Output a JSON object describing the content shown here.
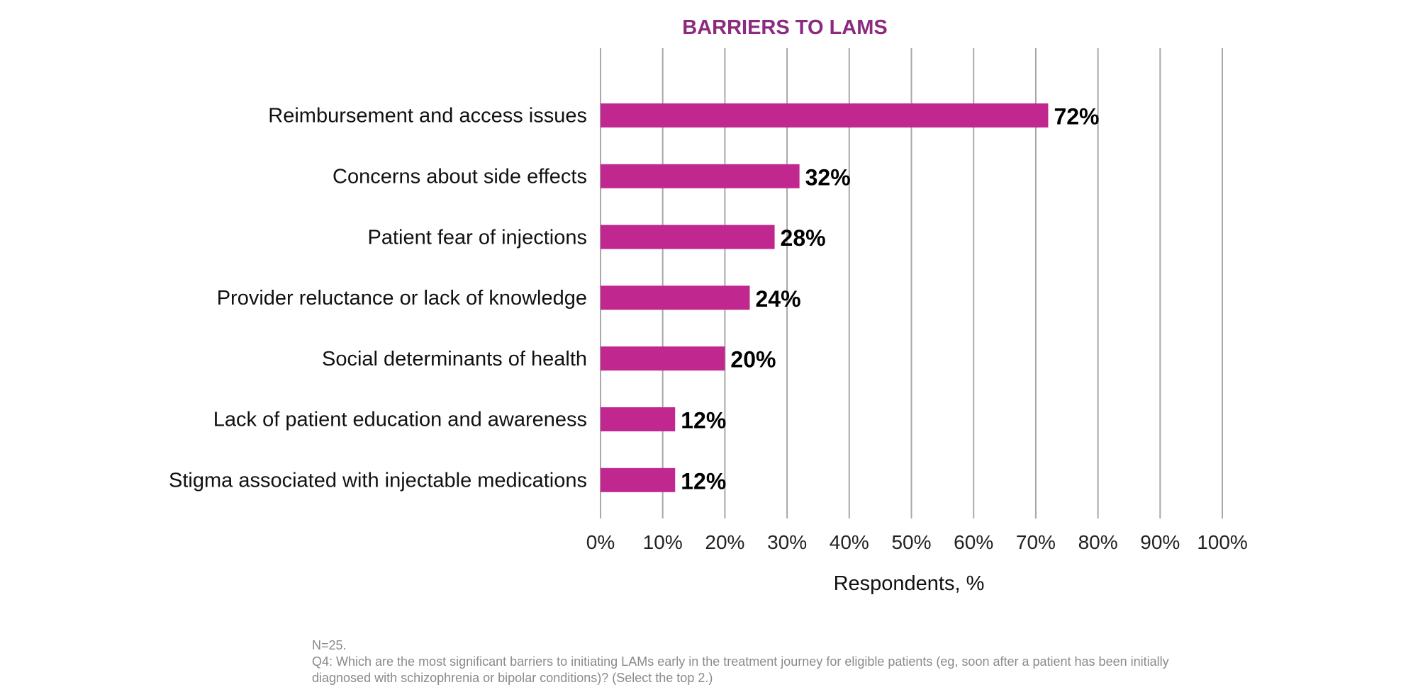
{
  "colors": {
    "bar": "#c02890",
    "title": "#8b2a7e",
    "grid": "#a8a8a8"
  },
  "chart_data": {
    "type": "bar",
    "orientation": "horizontal",
    "title": "BARRIERS TO LAMS",
    "xlabel": "Respondents, %",
    "ylabel": "",
    "categories": [
      "Reimbursement and access issues",
      "Concerns about side effects",
      "Patient fear of injections",
      "Provider reluctance or lack of knowledge",
      "Social determinants of health",
      "Lack of patient education and awareness",
      "Stigma associated with injectable medications"
    ],
    "values": [
      72,
      32,
      28,
      24,
      20,
      12,
      12
    ],
    "data_labels": [
      "72%",
      "32%",
      "28%",
      "24%",
      "20%",
      "12%",
      "12%"
    ],
    "xlim": [
      0,
      100
    ],
    "xticks": [
      0,
      10,
      20,
      30,
      40,
      50,
      60,
      70,
      80,
      90,
      100
    ],
    "xtick_labels": [
      "0%",
      "10%",
      "20%",
      "30%",
      "40%",
      "50%",
      "60%",
      "70%",
      "80%",
      "90%",
      "100%"
    ],
    "grid": "vertical",
    "legend": "none"
  },
  "footnote": {
    "n_label": "N=25.",
    "question_line1": "Q4: Which are the most significant barriers to initiating LAMs early in the treatment journey for eligible patients (eg, soon after a patient has been initially",
    "question_line2": "diagnosed with schizophrenia or bipolar conditions)? (Select the top 2.)"
  }
}
